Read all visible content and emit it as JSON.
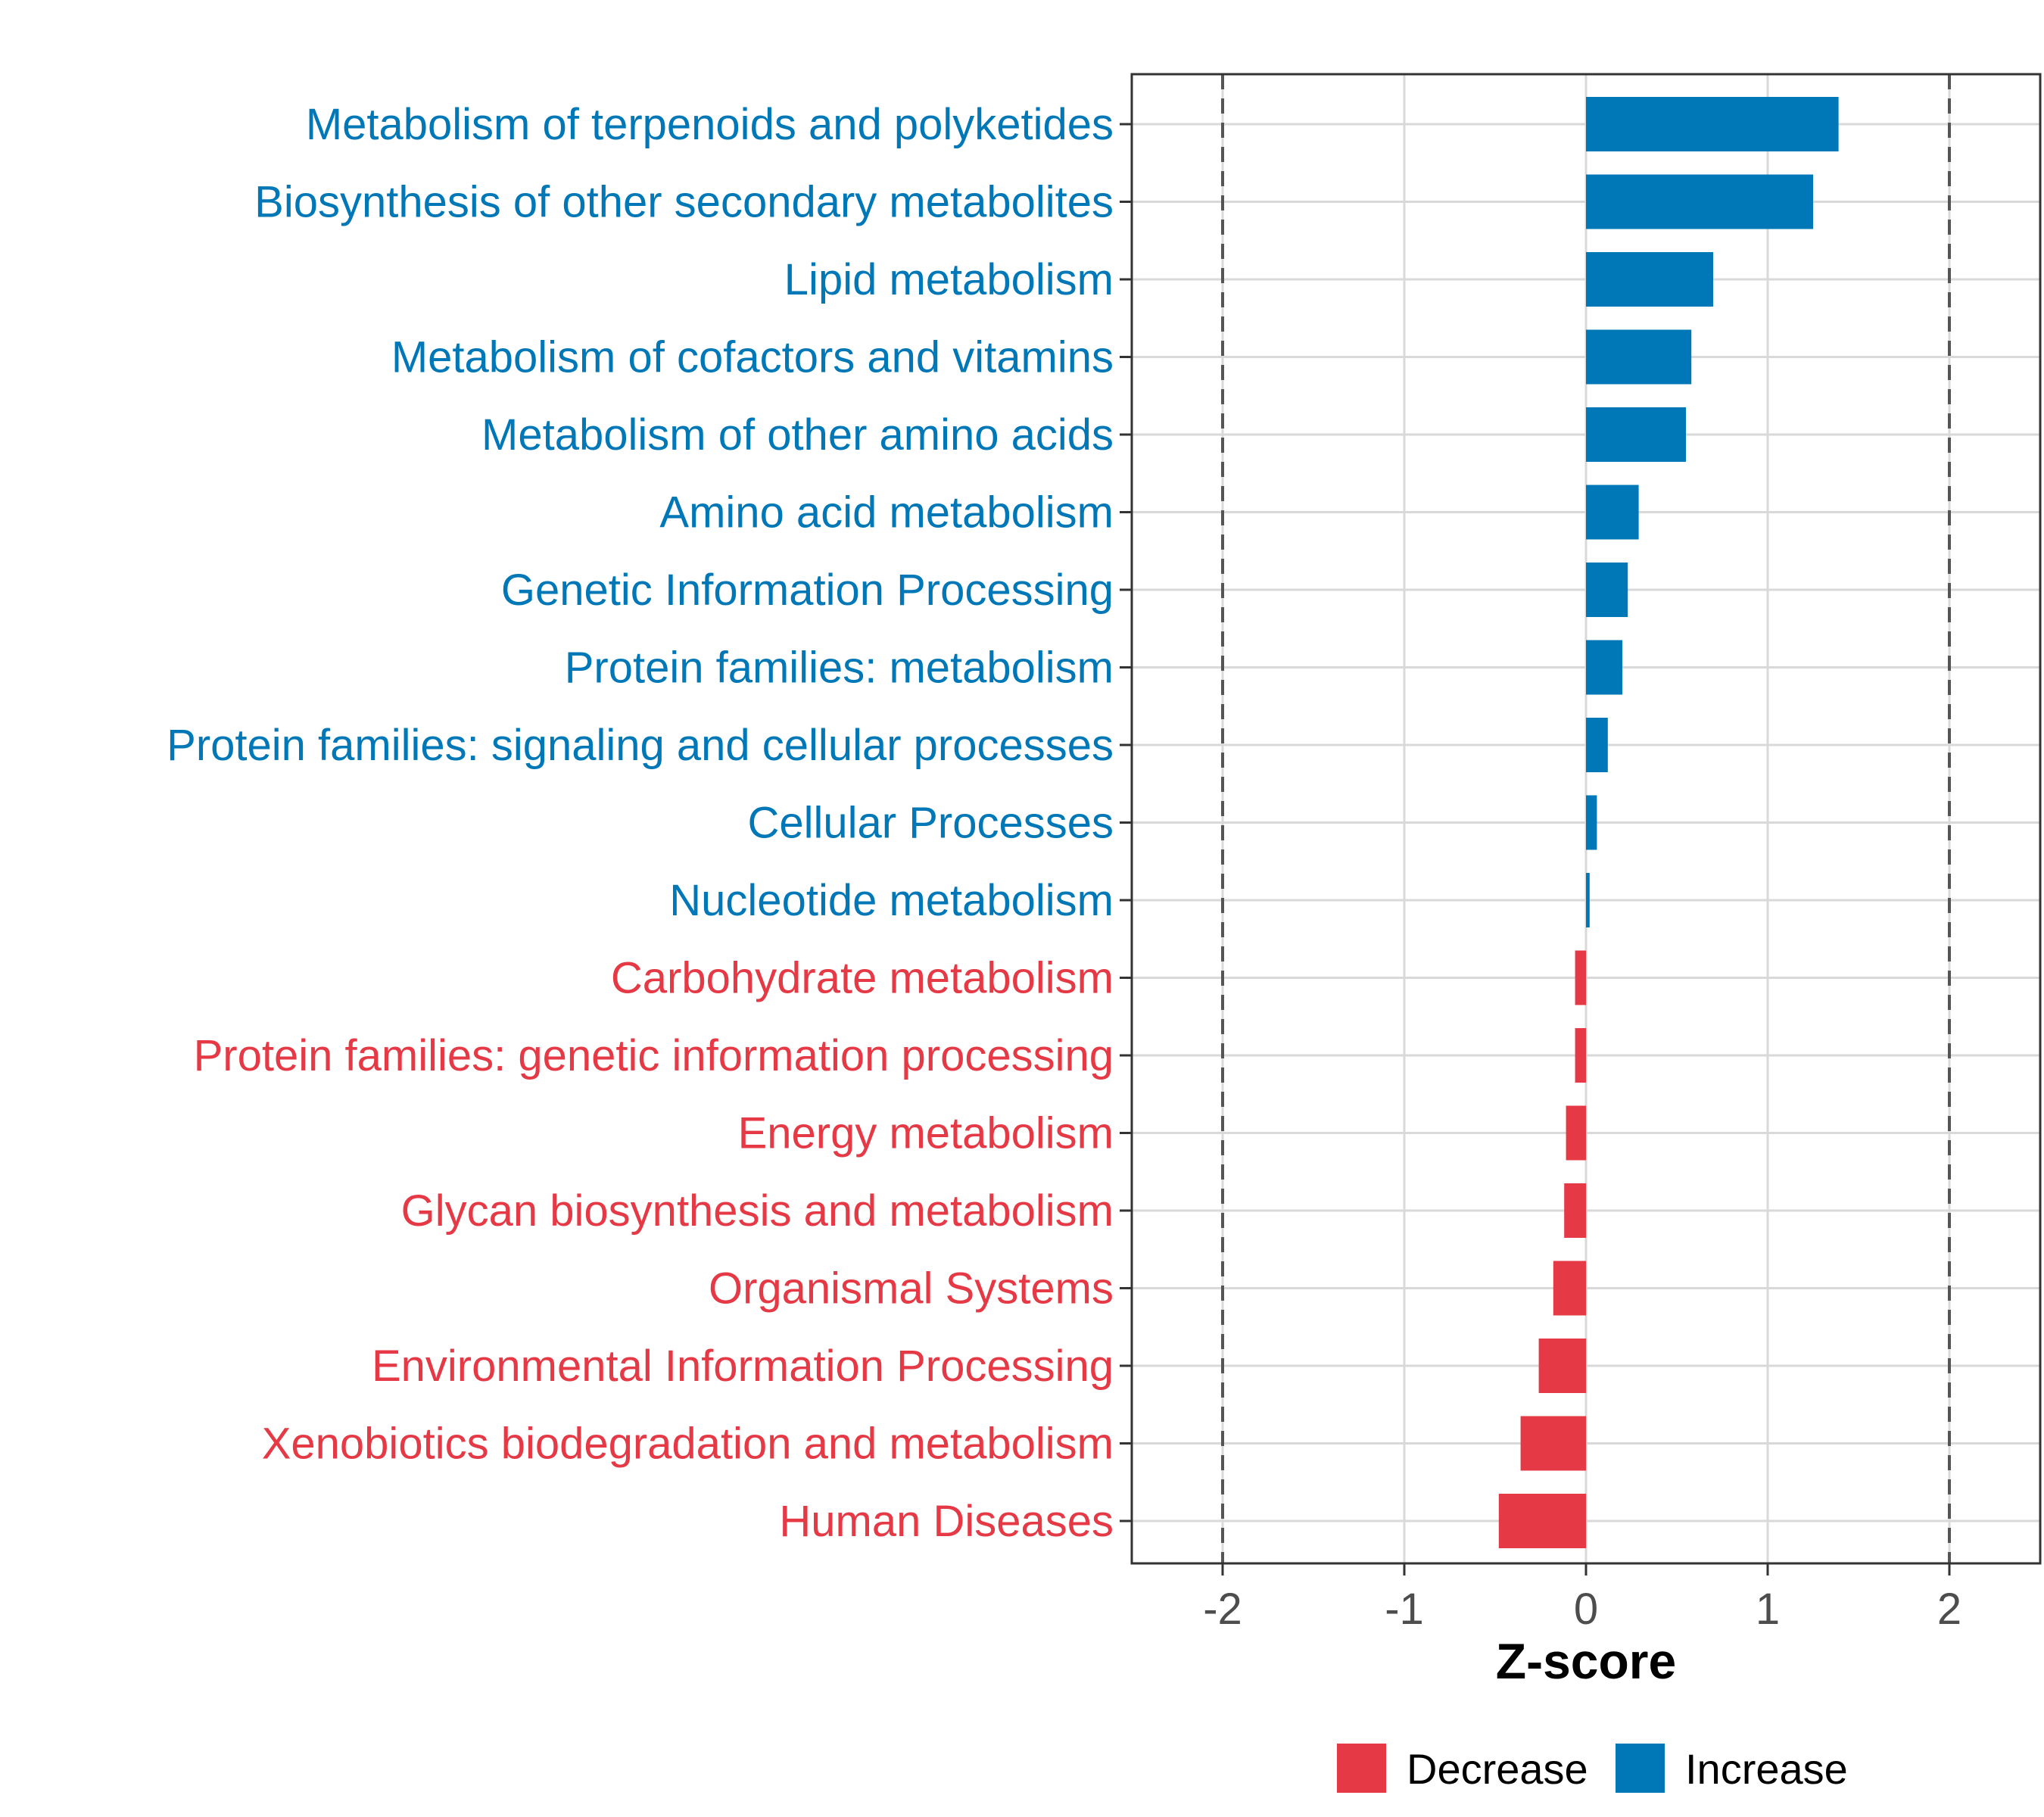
{
  "chart_data": {
    "type": "bar",
    "orientation": "horizontal",
    "xlabel": "Z-score",
    "ylabel": "",
    "xlim": [
      -2.5,
      2.5
    ],
    "xticks": [
      -2,
      -1,
      0,
      1,
      2
    ],
    "reference_lines": [
      -2,
      2
    ],
    "grid": true,
    "legend_position": "bottom",
    "categories": [
      "Metabolism of terpenoids and polyketides",
      "Biosynthesis of other secondary metabolites",
      "Lipid metabolism",
      "Metabolism of cofactors and vitamins",
      "Metabolism of other amino acids",
      "Amino acid metabolism",
      "Genetic Information Processing",
      "Protein families: metabolism",
      "Protein families: signaling and cellular processes",
      "Cellular Processes",
      "Nucleotide metabolism",
      "Carbohydrate metabolism",
      "Protein families: genetic information processing",
      "Energy metabolism",
      "Glycan biosynthesis and metabolism",
      "Organismal Systems",
      "Environmental Information Processing",
      "Xenobiotics biodegradation and metabolism",
      "Human Diseases"
    ],
    "values": [
      1.39,
      1.25,
      0.7,
      0.58,
      0.55,
      0.29,
      0.23,
      0.2,
      0.12,
      0.06,
      0.02,
      -0.06,
      -0.06,
      -0.11,
      -0.12,
      -0.18,
      -0.26,
      -0.36,
      -0.48
    ],
    "legend": [
      {
        "label": "Decrease",
        "color": "#E63946"
      },
      {
        "label": "Increase",
        "color": "#0077B6"
      }
    ]
  },
  "colors": {
    "increase": "#0077B6",
    "decrease": "#E63946",
    "grid": "#d9d9d9",
    "axis": "#333333",
    "refline": "#555555"
  }
}
